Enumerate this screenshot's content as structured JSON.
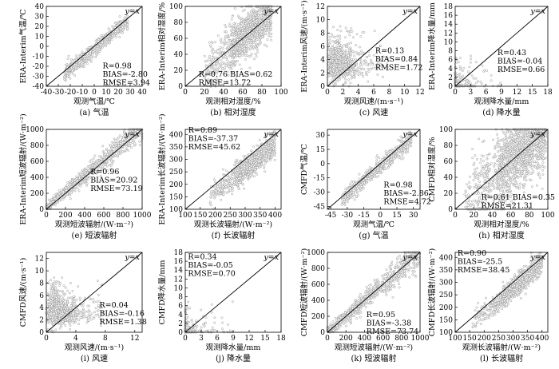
{
  "chart_data": [
    {
      "id": "a",
      "type": "scatter",
      "caption": "(a) 气温",
      "xlabel": "观测气温/℃",
      "ylabel": "ERA-Interim气温/℃",
      "xlim": [
        -40,
        40
      ],
      "ylim": [
        -40,
        40
      ],
      "xticks": [
        -40,
        -30,
        -20,
        -10,
        0,
        10,
        20,
        30,
        40
      ],
      "yticks": [
        -40,
        -30,
        -20,
        -10,
        0,
        10,
        20,
        30,
        40
      ],
      "xtick_labels": [
        "-40",
        "-30",
        "-20",
        "-10",
        "0",
        "10",
        "20",
        "30",
        "40"
      ],
      "ytick_labels": [
        "-40",
        "-30",
        "-20",
        "-10",
        "0",
        "10",
        "20",
        "30",
        "40"
      ],
      "line_label": "y=x",
      "stats": [
        "R=0.98",
        "BIAS=-2.80",
        "RMSE=3.94"
      ],
      "stats_anchor": [
        7,
        -22
      ],
      "pattern": "tight",
      "n": 550,
      "spread": 4,
      "bias": -2.8,
      "cluster": [
        -25,
        28
      ],
      "seed": 11
    },
    {
      "id": "b",
      "type": "scatter",
      "caption": "(b) 相对湿度",
      "xlabel": "观测相对湿度/%",
      "ylabel": "ERA-Interim相对湿度/%",
      "xlim": [
        0,
        100
      ],
      "ylim": [
        0,
        100
      ],
      "xticks": [
        0,
        20,
        40,
        60,
        80,
        100
      ],
      "yticks": [
        0,
        20,
        40,
        60,
        80,
        100
      ],
      "xtick_labels": [
        "0",
        "20",
        "40",
        "60",
        "80",
        "100"
      ],
      "ytick_labels": [
        "0",
        "20",
        "40",
        "60",
        "80",
        "100"
      ],
      "line_label": "y=x",
      "stats": [
        "R=0.76 BIAS=0.62",
        "RMSE=13.72"
      ],
      "stats_anchor": [
        14,
        12
      ],
      "pattern": "cloud",
      "n": 1100,
      "spread": 14,
      "bias": 0.6,
      "cluster": [
        20,
        90
      ],
      "seed": 22
    },
    {
      "id": "c",
      "type": "scatter",
      "caption": "(c) 风速",
      "xlabel": "观测风速/(m·s⁻¹)",
      "ylabel": "ERA-Interim风速/(m·s⁻¹)",
      "xlim": [
        0,
        12
      ],
      "ylim": [
        0,
        12
      ],
      "xticks": [
        0,
        2,
        4,
        6,
        8,
        10,
        12
      ],
      "yticks": [
        0,
        2,
        4,
        6,
        8,
        10,
        12
      ],
      "xtick_labels": [
        "0",
        "2",
        "4",
        "6",
        "8",
        "10",
        "12"
      ],
      "ytick_labels": [
        "0",
        "2",
        "4",
        "6",
        "8",
        "10",
        "12"
      ],
      "line_label": "y=x",
      "stats": [
        "R=0.13",
        "BIAS=0.84",
        "RMSE=1.72"
      ],
      "stats_anchor": [
        6.2,
        5
      ],
      "pattern": "wind",
      "n": 900,
      "seed": 33
    },
    {
      "id": "d",
      "type": "scatter",
      "caption": "(d) 降水量",
      "xlabel": "观测降水量/mm",
      "ylabel": "ERA-Interim降水量/mm",
      "xlim": [
        0,
        18
      ],
      "ylim": [
        0,
        18
      ],
      "xticks": [
        0,
        3,
        6,
        9,
        12,
        15,
        18
      ],
      "yticks": [
        0,
        2,
        4,
        6,
        8,
        10,
        12,
        14,
        16,
        18
      ],
      "xtick_labels": [
        "0",
        "3",
        "6",
        "9",
        "12",
        "15",
        "18"
      ],
      "ytick_labels": [
        "0",
        "2",
        "4",
        "6",
        "8",
        "10",
        "12",
        "14",
        "16",
        "18"
      ],
      "line_label": "y=x",
      "stats": [
        "R=0.43",
        "BIAS=-0.04",
        "RMSE=0.66"
      ],
      "stats_anchor": [
        8.2,
        7
      ],
      "pattern": "precip",
      "n": 180,
      "seed": 44
    },
    {
      "id": "e",
      "type": "scatter",
      "caption": "(e) 短波辐射",
      "xlabel": "观测短波辐射/(W·m⁻²)",
      "ylabel": "ERA-Interim短波辐射/(W·m⁻²)",
      "xlim": [
        0,
        1000
      ],
      "ylim": [
        0,
        1000
      ],
      "xticks": [
        0,
        200,
        400,
        600,
        800,
        1000
      ],
      "yticks": [
        0,
        200,
        400,
        600,
        800,
        1000
      ],
      "xtick_labels": [
        "0",
        "200",
        "400",
        "600",
        "800",
        "1000"
      ],
      "ytick_labels": [
        "0",
        "200",
        "400",
        "600",
        "800",
        "1000"
      ],
      "line_label": "y=x",
      "stats": [
        "R=0.96",
        "BIAS=20.92",
        "RMSE=73.19"
      ],
      "stats_anchor": [
        460,
        440
      ],
      "pattern": "sw",
      "n": 800,
      "spread": 60,
      "bias": 21,
      "cluster": [
        0,
        950
      ],
      "seed": 55
    },
    {
      "id": "f",
      "type": "scatter",
      "caption": "(f) 长波辐射",
      "xlabel": "观测长波辐射/(W·m⁻²)",
      "ylabel": "ERA-Interim长波辐射/(W·m⁻²)",
      "xlim": [
        100,
        420
      ],
      "ylim": [
        100,
        420
      ],
      "xticks": [
        100,
        150,
        200,
        250,
        300,
        350,
        400
      ],
      "yticks": [
        100,
        150,
        200,
        250,
        300,
        350,
        400
      ],
      "xtick_labels": [
        "100",
        "150",
        "200",
        "250",
        "300",
        "350",
        "400"
      ],
      "ytick_labels": [
        "100",
        "150",
        "200",
        "250",
        "300",
        "350",
        "400"
      ],
      "line_label": "y=x",
      "stats": [
        "R=0.89",
        "BIAS=-37.37",
        "RMSE=45.62"
      ],
      "stats_anchor": [
        110,
        408
      ],
      "pattern": "cloud",
      "n": 1000,
      "spread": 24,
      "bias": -37,
      "cluster": [
        180,
        400
      ],
      "seed": 66
    },
    {
      "id": "g",
      "type": "scatter",
      "caption": "(g) 气温",
      "xlabel": "观测气温/℃",
      "ylabel": "CMFD气温/℃",
      "xlim": [
        -48,
        36
      ],
      "ylim": [
        -48,
        36
      ],
      "xticks": [
        -45,
        -30,
        -15,
        0,
        15,
        30
      ],
      "yticks": [
        -45,
        -30,
        -15,
        0,
        15,
        30
      ],
      "xtick_labels": [
        "-45",
        "-30",
        "-15",
        "0",
        "15",
        "30"
      ],
      "ytick_labels": [
        "-45",
        "-30",
        "-15",
        "0",
        "15",
        "30"
      ],
      "line_label": "y=x",
      "stats": [
        "R=0.98",
        "BIAS=-2.86",
        "RMSE=4.72"
      ],
      "stats_anchor": [
        3,
        -25
      ],
      "pattern": "tight",
      "n": 550,
      "spread": 4.5,
      "bias": -2.9,
      "cluster": [
        -35,
        28
      ],
      "seed": 77
    },
    {
      "id": "h",
      "type": "scatter",
      "caption": "(h) 相对湿度",
      "xlabel": "观测相对湿度/%",
      "ylabel": "CMFD相对湿度/%",
      "xlim": [
        0,
        100
      ],
      "ylim": [
        0,
        100
      ],
      "xticks": [
        0,
        20,
        40,
        60,
        80,
        100
      ],
      "yticks": [
        0,
        20,
        40,
        60,
        80,
        100
      ],
      "xtick_labels": [
        "0",
        "20",
        "40",
        "60",
        "80",
        "100"
      ],
      "ytick_labels": [
        "0",
        "20",
        "40",
        "60",
        "80",
        "100"
      ],
      "line_label": "y=x",
      "stats": [
        "R=0.61 BIAS=0.35",
        "RMSE=21.31"
      ],
      "stats_anchor": [
        28,
        12
      ],
      "pattern": "cloud",
      "n": 1500,
      "spread": 22,
      "bias": 0.4,
      "cluster": [
        10,
        98
      ],
      "seed": 88
    },
    {
      "id": "i",
      "type": "scatter",
      "caption": "(i) 风速",
      "xlabel": "观测风速/(m·s⁻¹)",
      "ylabel": "CMFD风速/(m·s⁻¹)",
      "xlim": [
        0,
        13
      ],
      "ylim": [
        0,
        13
      ],
      "xticks": [
        0,
        4,
        8,
        12
      ],
      "yticks": [
        0,
        2,
        4,
        6,
        8,
        10,
        12
      ],
      "xtick_labels": [
        "0",
        "4",
        "8",
        "12"
      ],
      "ytick_labels": [
        "0",
        "2",
        "4",
        "6",
        "8",
        "10",
        "12"
      ],
      "line_label": "y=x",
      "stats": [
        "R=0.04",
        "BIAS=-0.16",
        "RMSE=1.38"
      ],
      "stats_anchor": [
        7.2,
        4
      ],
      "pattern": "wind",
      "n": 900,
      "seed": 99
    },
    {
      "id": "j",
      "type": "scatter",
      "caption": "(j) 降水量",
      "xlabel": "观测降水量/mm",
      "ylabel": "CMFD降水量/mm",
      "xlim": [
        0,
        18
      ],
      "ylim": [
        0,
        18
      ],
      "xticks": [
        0,
        3,
        6,
        9,
        12,
        15,
        18
      ],
      "yticks": [
        0,
        2,
        4,
        6,
        8,
        10,
        12,
        14,
        16,
        18
      ],
      "xtick_labels": [
        "0",
        "3",
        "6",
        "9",
        "12",
        "15",
        "18"
      ],
      "ytick_labels": [
        "0",
        "2",
        "4",
        "6",
        "8",
        "10",
        "12",
        "14",
        "16",
        "18"
      ],
      "line_label": "y=x",
      "stats": [
        "R=0.34",
        "BIAS=-0.05",
        "RMSE=0.70"
      ],
      "stats_anchor": [
        0.5,
        16.5
      ],
      "pattern": "precip",
      "n": 180,
      "seed": 111
    },
    {
      "id": "k",
      "type": "scatter",
      "caption": "(k) 短波辐射",
      "xlabel": "观测短波辐射/(W·m⁻²)",
      "ylabel": "CMFD短波辐射/(W·m⁻²)",
      "xlim": [
        0,
        1000
      ],
      "ylim": [
        0,
        1000
      ],
      "xticks": [
        0,
        200,
        400,
        600,
        800,
        1000
      ],
      "yticks": [
        0,
        200,
        400,
        600,
        800,
        1000
      ],
      "xtick_labels": [
        "0",
        "200",
        "400",
        "600",
        "800",
        "1000"
      ],
      "ytick_labels": [
        "0",
        "200",
        "400",
        "600",
        "800",
        "1000"
      ],
      "line_label": "y=x",
      "stats": [
        "R=0.95",
        "BIAS=-3.38",
        "RMSE=73.74"
      ],
      "stats_anchor": [
        420,
        190
      ],
      "pattern": "sw",
      "n": 800,
      "spread": 65,
      "bias": -3,
      "cluster": [
        0,
        950
      ],
      "seed": 122
    },
    {
      "id": "l",
      "type": "scatter",
      "caption": "(l) 长波辐射",
      "xlabel": "观测长波辐射/(W·m⁻²)",
      "ylabel": "CMFD长波辐射/(W·m⁻²)",
      "xlim": [
        100,
        420
      ],
      "ylim": [
        100,
        420
      ],
      "xticks": [
        100,
        150,
        200,
        250,
        300,
        350,
        400
      ],
      "yticks": [
        100,
        150,
        200,
        250,
        300,
        350,
        400
      ],
      "xtick_labels": [
        "100",
        "150",
        "200",
        "250",
        "300",
        "350",
        "400"
      ],
      "ytick_labels": [
        "100",
        "150",
        "200",
        "250",
        "300",
        "350",
        "400"
      ],
      "line_label": "y=x",
      "stats": [
        "R=0.90",
        "BIAS=-25.5",
        "RMSE=38.45"
      ],
      "stats_anchor": [
        108,
        408
      ],
      "pattern": "cloud",
      "n": 1000,
      "spread": 20,
      "bias": -25,
      "cluster": [
        160,
        400
      ],
      "seed": 133
    }
  ]
}
